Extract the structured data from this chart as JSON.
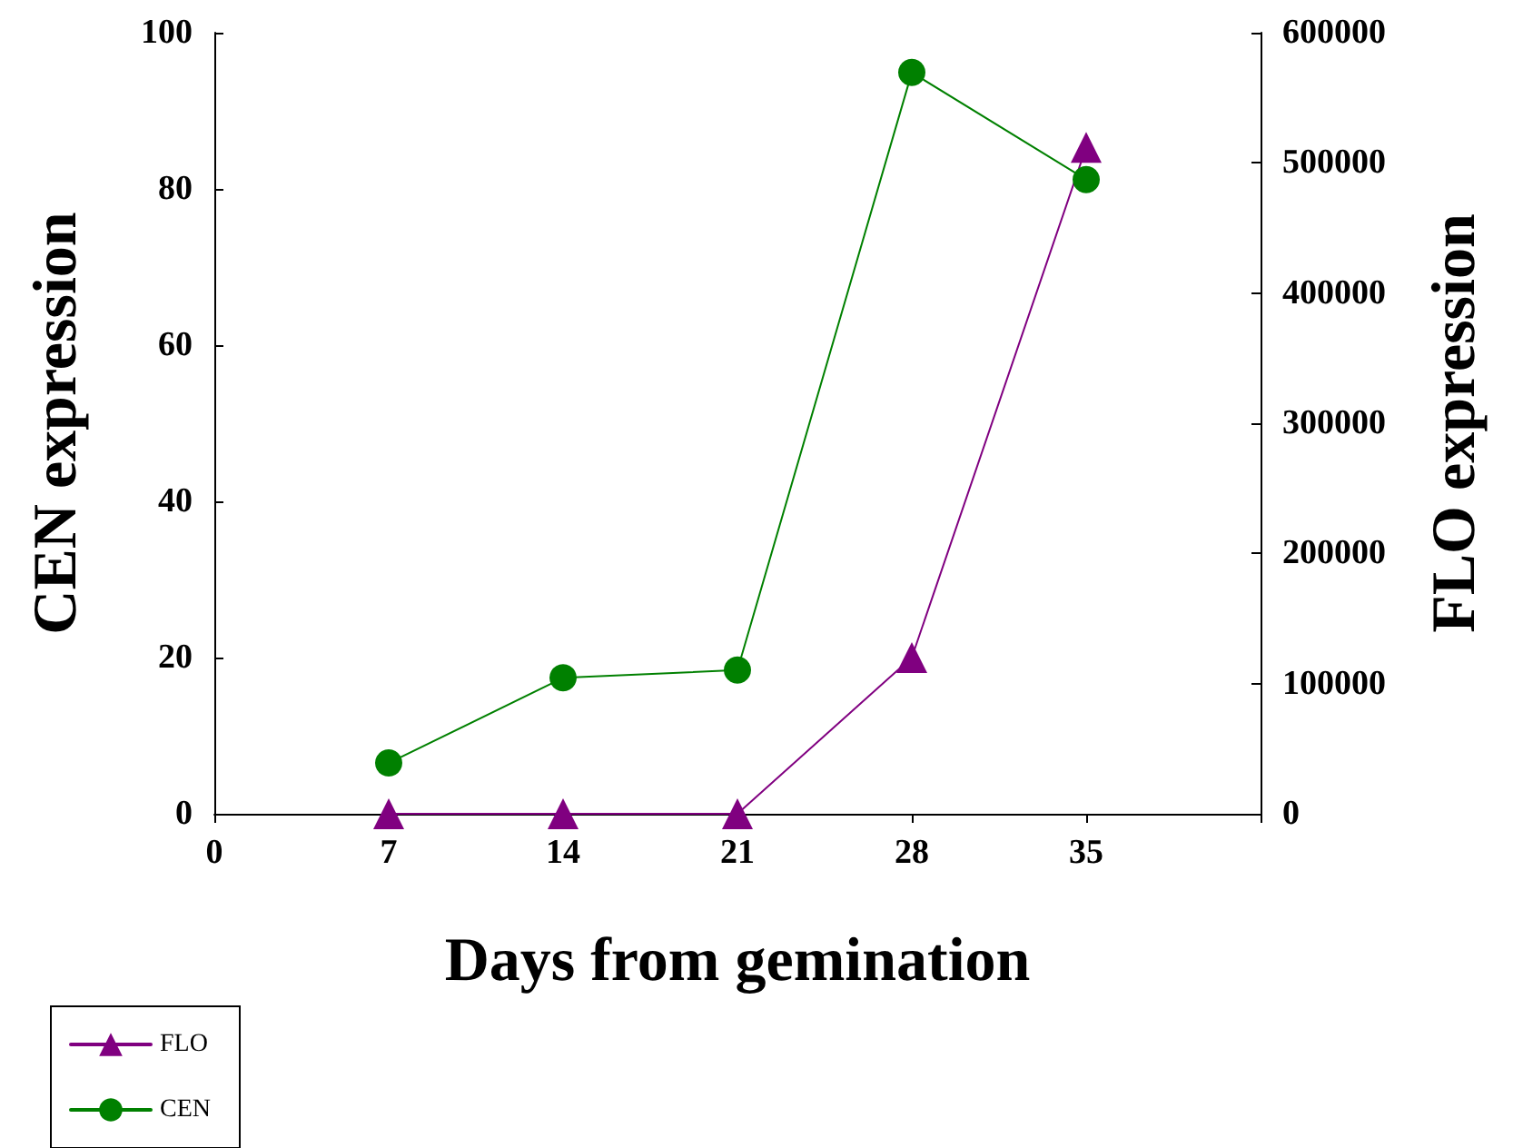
{
  "chart_data": {
    "type": "line",
    "xlabel": "Days from gemination",
    "ylabel": "CEN expression",
    "y2label": "FLO expression",
    "x": [
      7,
      14,
      21,
      28,
      35
    ],
    "series": [
      {
        "name": "FLO",
        "color": "#800080",
        "axis": "y2",
        "marker": "triangle",
        "values": [
          0,
          0,
          0,
          120000,
          512000
        ]
      },
      {
        "name": "CEN",
        "color": "#008000",
        "marker": "circle",
        "values": [
          6.5,
          17.4,
          18.4,
          94.9,
          81.2
        ]
      }
    ],
    "xlim": [
      0,
      42
    ],
    "xticks": [
      0,
      7,
      14,
      21,
      28,
      35,
      {
        "value": 42,
        "label": null
      }
    ],
    "ylim": [
      0,
      100
    ],
    "yticks": [
      0,
      20,
      40,
      60,
      80,
      100
    ],
    "y2lim": [
      0,
      600000
    ],
    "y2ticks": [
      0,
      100000,
      200000,
      300000,
      400000,
      500000,
      600000
    ],
    "grid": false,
    "legend": "bottom left",
    "line_style": "solid"
  }
}
